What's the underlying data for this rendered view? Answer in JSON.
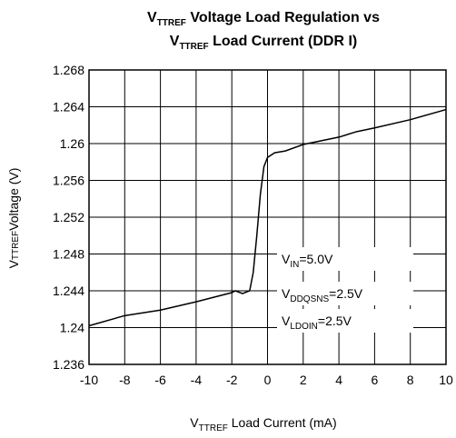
{
  "chart_data": {
    "type": "line",
    "title": [
      {
        "main": "V",
        "sub": "TTREF",
        "rest": " Voltage Load Regulation vs"
      },
      {
        "main": "V",
        "sub": "TTREF",
        "rest": " Load Current (DDR I)"
      }
    ],
    "x_label": {
      "main": "V",
      "sub": "TTREF",
      "rest": " Load Current (mA)"
    },
    "y_label": {
      "main": "V",
      "sub": "TTREF",
      "rest": "Voltage (V)"
    },
    "annotations": [
      {
        "main": "V",
        "sub": "IN",
        "rest": "=5.0V"
      },
      {
        "main": "V",
        "sub": "DDQSNS",
        "rest": "=2.5V"
      },
      {
        "main": "V",
        "sub": "LDOIN",
        "rest": "=2.5V"
      }
    ],
    "x": [
      -10,
      -8,
      -6,
      -4,
      -2,
      -1.8,
      -1.4,
      -1,
      -0.8,
      -0.6,
      -0.4,
      -0.2,
      0,
      0.4,
      1,
      2,
      4,
      5,
      6,
      8,
      10
    ],
    "values": [
      1.2402,
      1.2413,
      1.2419,
      1.2428,
      1.2438,
      1.244,
      1.2437,
      1.244,
      1.246,
      1.25,
      1.2545,
      1.2575,
      1.2585,
      1.259,
      1.2592,
      1.2599,
      1.2607,
      1.2613,
      1.2617,
      1.2626,
      1.2637
    ],
    "color": "#000000",
    "xlim": [
      -10,
      10
    ],
    "xticks": [
      -10,
      -8,
      -6,
      -4,
      -2,
      0,
      2,
      4,
      6,
      8,
      10
    ],
    "ylim": [
      1.236,
      1.268
    ],
    "yticks": [
      1.236,
      1.24,
      1.244,
      1.248,
      1.252,
      1.256,
      1.26,
      1.264,
      1.268
    ],
    "grid": true
  }
}
